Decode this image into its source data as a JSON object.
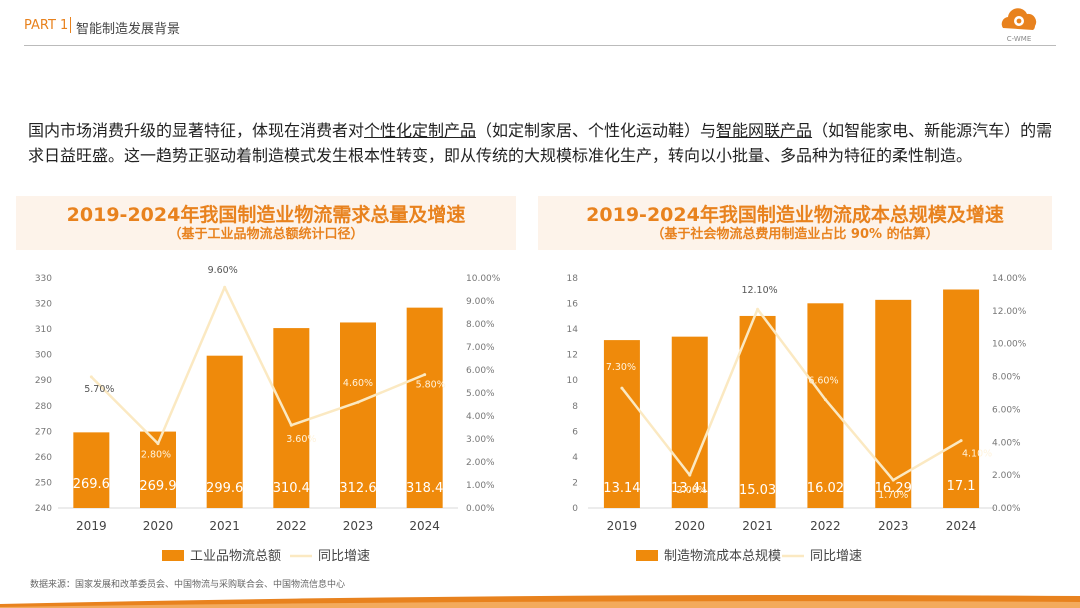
{
  "header": {
    "part": "PART 1",
    "section": "智能制造发展背景",
    "logo_text": "C-WME",
    "logo_color": "#e8821e"
  },
  "intro": {
    "s1": "国内市场消费升级的显著特征，体现在消费者对",
    "u1": "个性化定制产品",
    "s2": "（如定制家居、个性化运动鞋）与",
    "u2": "智能网联产品",
    "s3": "（如智能家电、新能源汽车）的需求日益旺盛。这一趋势正驱动着制造模式发生根本性转变，即从传统的大规模标准化生产，转向以小批量、多品种为特征的柔性制造。"
  },
  "footer": {
    "source": "数据来源：国家发展和改革委员会、中国物流与采购联合会、中国物流信息中心"
  },
  "colors": {
    "bar": "#ef8a0b",
    "line": "#fbe9c2",
    "accent": "#e8821e"
  },
  "chart_data": [
    {
      "type": "bar",
      "title": "2019-2024年我国制造业物流需求总量及增速",
      "subtitle": "（基于工业品物流总额统计口径）",
      "categories": [
        "2019",
        "2020",
        "2021",
        "2022",
        "2023",
        "2024"
      ],
      "series": [
        {
          "name": "工业品物流总额",
          "type": "bar",
          "axis": "left",
          "values": [
            269.6,
            269.9,
            299.6,
            310.4,
            312.6,
            318.4
          ],
          "labels": [
            "269.6",
            "269.9",
            "299.6",
            "310.4",
            "312.6",
            "318.4"
          ]
        },
        {
          "name": "同比增速",
          "type": "line",
          "axis": "right",
          "values": [
            5.7,
            2.8,
            9.6,
            3.6,
            4.6,
            5.8
          ],
          "labels": [
            "5.70%",
            "2.80%",
            "9.60%",
            "3.60%",
            "4.60%",
            "5.80%"
          ]
        }
      ],
      "ylim": [
        240,
        330
      ],
      "yticks": [
        "240",
        "250",
        "260",
        "270",
        "280",
        "290",
        "300",
        "310",
        "320",
        "330"
      ],
      "y2lim": [
        0,
        10
      ],
      "y2ticks": [
        "0.00%",
        "1.00%",
        "2.00%",
        "3.00%",
        "4.00%",
        "5.00%",
        "6.00%",
        "7.00%",
        "8.00%",
        "9.00%",
        "10.00%"
      ],
      "legend": "bottom"
    },
    {
      "type": "bar",
      "title": "2019-2024年我国制造业物流成本总规模及增速",
      "subtitle": "（基于社会物流总费用制造业占比 90% 的估算）",
      "categories": [
        "2019",
        "2020",
        "2021",
        "2022",
        "2023",
        "2024"
      ],
      "series": [
        {
          "name": "制造物流成本总规模",
          "type": "bar",
          "axis": "left",
          "values": [
            13.14,
            13.41,
            15.03,
            16.02,
            16.29,
            17.1
          ],
          "labels": [
            "13.14",
            "13.41",
            "15.03",
            "16.02",
            "16.29",
            "17.1"
          ]
        },
        {
          "name": "同比增速",
          "type": "line",
          "axis": "right",
          "values": [
            7.3,
            2.0,
            12.1,
            6.6,
            1.7,
            4.1
          ],
          "labels": [
            "7.30%",
            "2.00%",
            "12.10%",
            "6.60%",
            "1.70%",
            "4.10%"
          ]
        }
      ],
      "ylim": [
        0,
        18
      ],
      "yticks": [
        "0",
        "2",
        "4",
        "6",
        "8",
        "10",
        "12",
        "14",
        "16",
        "18"
      ],
      "y2lim": [
        0,
        14
      ],
      "y2ticks": [
        "0.00%",
        "2.00%",
        "4.00%",
        "6.00%",
        "8.00%",
        "10.00%",
        "12.00%",
        "14.00%"
      ],
      "legend": "bottom"
    }
  ]
}
